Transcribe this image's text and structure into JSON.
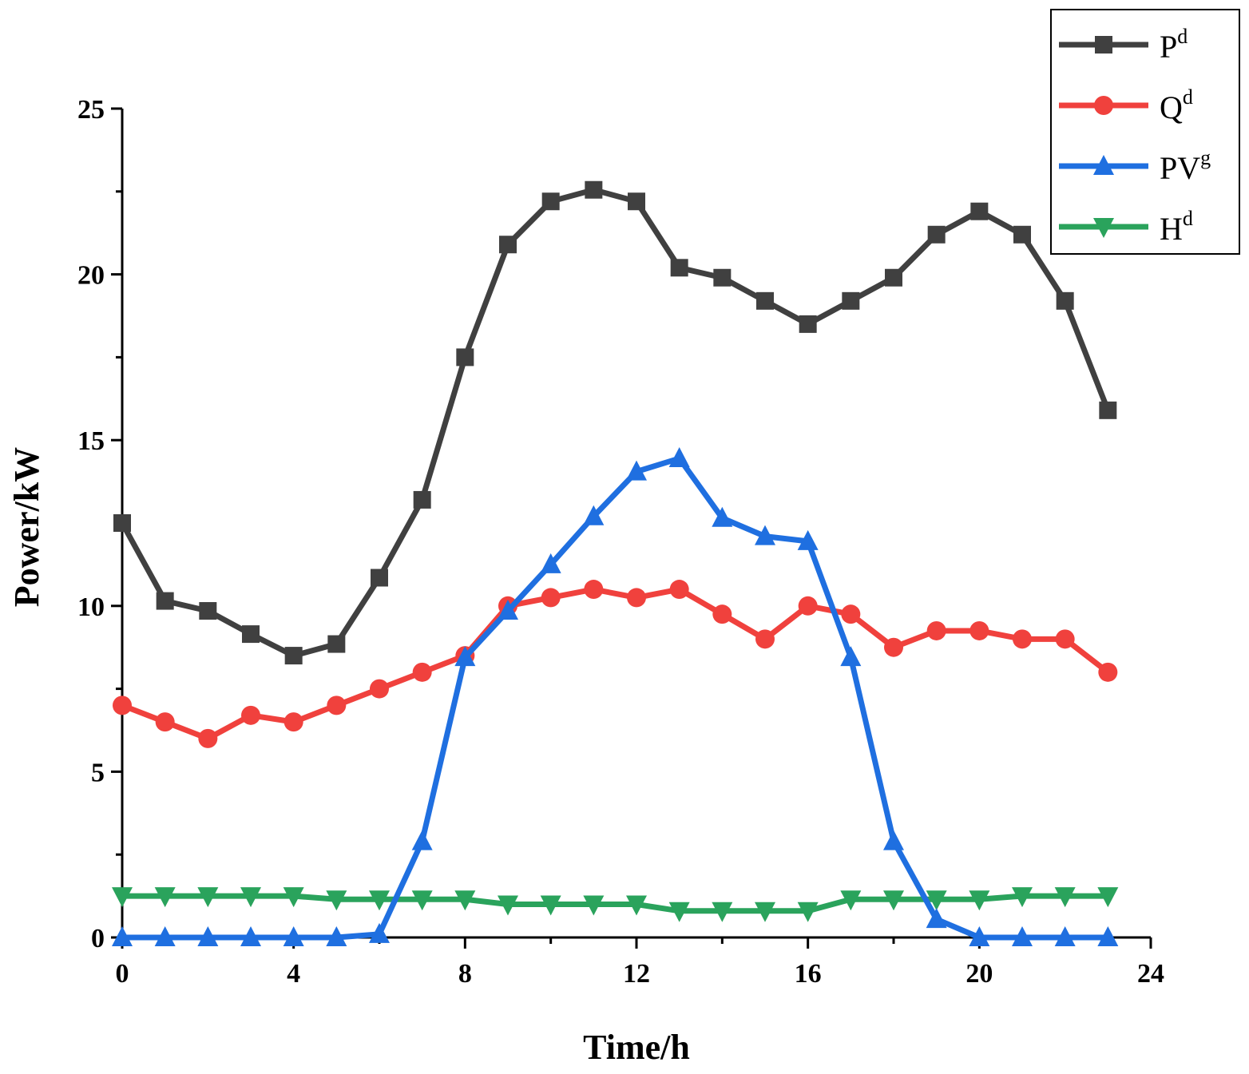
{
  "chart_data": {
    "type": "line",
    "title": "",
    "xlabel": "Time/h",
    "ylabel": "Power/kW",
    "xlim": [
      0,
      24
    ],
    "ylim": [
      0,
      25
    ],
    "xticks": [
      0,
      4,
      8,
      12,
      16,
      20,
      24
    ],
    "yticks": [
      0,
      5,
      10,
      15,
      20,
      25
    ],
    "grid": false,
    "legend_position": "top-right",
    "x": [
      0,
      1,
      2,
      3,
      4,
      5,
      6,
      7,
      8,
      9,
      10,
      11,
      12,
      13,
      14,
      15,
      16,
      17,
      18,
      19,
      20,
      21,
      22,
      23
    ],
    "series": [
      {
        "name": "P",
        "sup": "d",
        "color": "#404040",
        "marker": "square",
        "values": [
          12.5,
          10.15,
          9.85,
          9.15,
          8.5,
          8.85,
          10.85,
          13.2,
          17.5,
          20.9,
          22.2,
          22.55,
          22.2,
          20.2,
          19.9,
          19.2,
          18.5,
          19.2,
          19.9,
          21.2,
          21.9,
          21.2,
          19.2,
          15.9
        ]
      },
      {
        "name": "Q",
        "sup": "d",
        "color": "#f0413d",
        "marker": "circle",
        "values": [
          7.0,
          6.5,
          6.0,
          6.7,
          6.5,
          7.0,
          7.5,
          8.0,
          8.5,
          10.0,
          10.25,
          10.5,
          10.25,
          10.5,
          9.75,
          9.0,
          10.0,
          9.75,
          8.75,
          9.25,
          9.25,
          9.0,
          9.0,
          8.0
        ]
      },
      {
        "name": "PV",
        "sup": "g",
        "color": "#1f6fe0",
        "marker": "triangle-up",
        "values": [
          0.0,
          0.0,
          0.0,
          0.0,
          0.0,
          0.0,
          0.1,
          2.9,
          8.45,
          9.85,
          11.25,
          12.7,
          14.05,
          14.45,
          12.65,
          12.1,
          11.95,
          8.45,
          2.9,
          0.55,
          0.0,
          0.0,
          0.0,
          0.0
        ]
      },
      {
        "name": "H",
        "sup": "d",
        "color": "#2aa35c",
        "marker": "triangle-down",
        "values": [
          1.25,
          1.25,
          1.25,
          1.25,
          1.25,
          1.15,
          1.15,
          1.15,
          1.15,
          1.0,
          1.0,
          1.0,
          1.0,
          0.8,
          0.8,
          0.8,
          0.8,
          1.15,
          1.15,
          1.15,
          1.15,
          1.25,
          1.25,
          1.25
        ]
      }
    ]
  }
}
